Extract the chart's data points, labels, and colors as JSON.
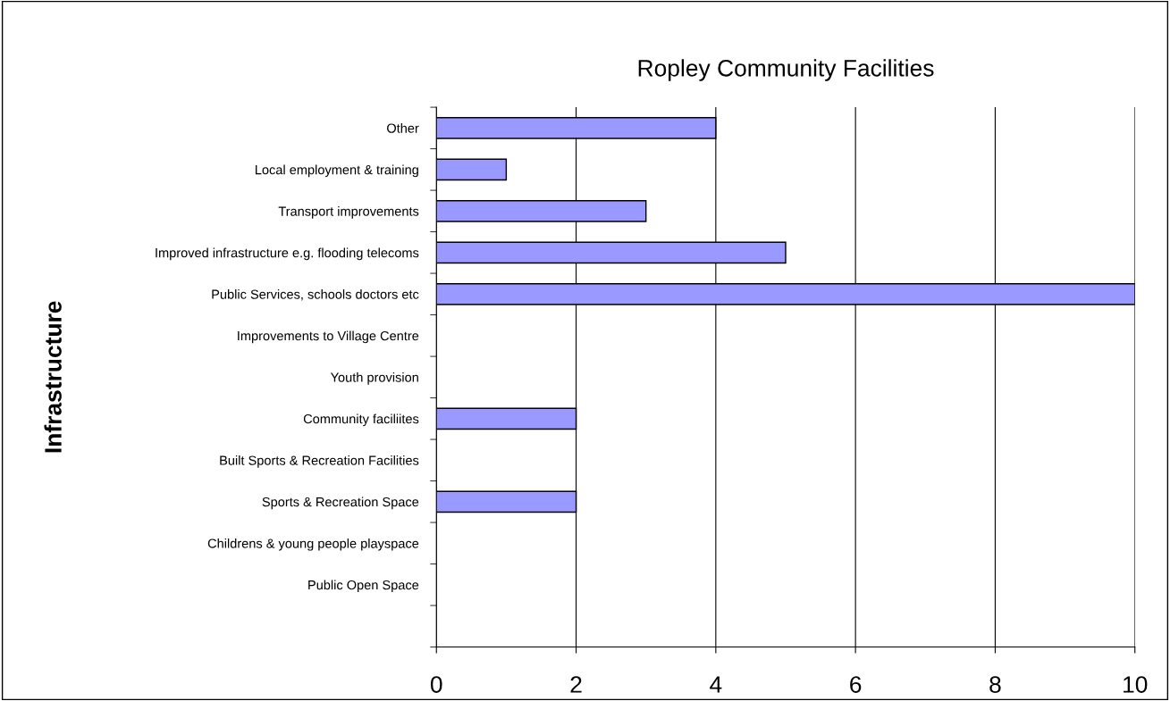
{
  "chart_data": {
    "type": "bar",
    "orientation": "horizontal",
    "title": "Ropley Community Facilities",
    "ylabel": "Infrastructure",
    "categories": [
      "Other",
      "Local employment & training",
      "Transport improvements",
      "Improved infrastructure e.g. flooding telecoms",
      "Public Services, schools doctors etc",
      "Improvements to Village Centre",
      "Youth provision",
      "Community faciliites",
      "Built Sports & Recreation Facilities",
      "Sports & Recreation Space",
      "Childrens & young people playspace",
      "Public Open Space",
      null
    ],
    "values": [
      4,
      1,
      3,
      5,
      10,
      0,
      0,
      2,
      0,
      2,
      0,
      0,
      null
    ],
    "color": "#9999ff",
    "xlim": [
      0,
      10
    ],
    "xticks": [
      0,
      2,
      4,
      6,
      8,
      10
    ],
    "grid": "x",
    "legend": false
  }
}
